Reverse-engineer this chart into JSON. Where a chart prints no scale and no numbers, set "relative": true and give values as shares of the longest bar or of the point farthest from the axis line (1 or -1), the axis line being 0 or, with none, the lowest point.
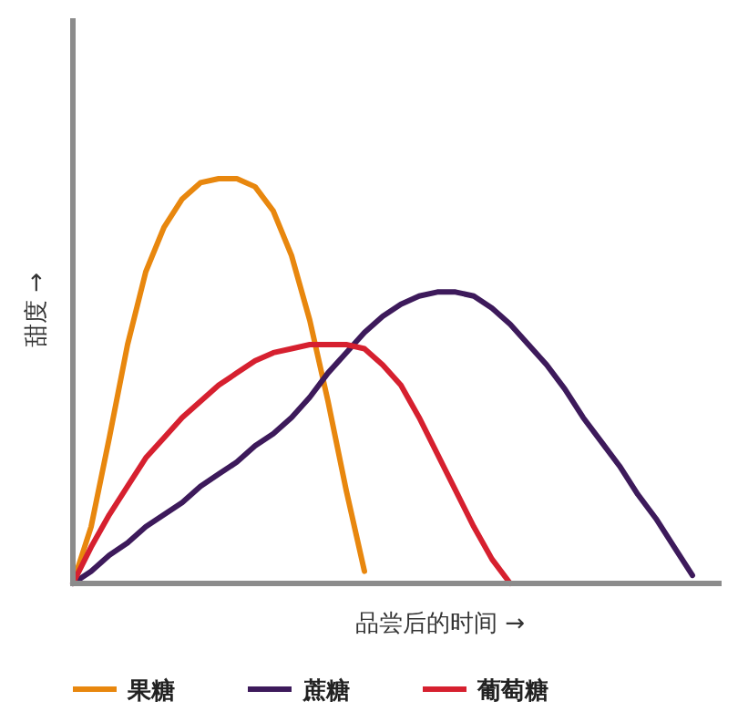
{
  "chart_data": {
    "type": "line",
    "relative": true,
    "xlabel": "品尝后的时间 →",
    "ylabel": "甜度 →",
    "legend": "bottom",
    "line_style": "solid",
    "categories": [
      null,
      null,
      null,
      null,
      null,
      null,
      null,
      null,
      null,
      null,
      null,
      null,
      null,
      null,
      null,
      null,
      null,
      null,
      null,
      null,
      null,
      null,
      null,
      null,
      null,
      null,
      null,
      null,
      null,
      null,
      null,
      null,
      null,
      null,
      null,
      null
    ],
    "series": [
      {
        "name": "果糖",
        "color": "#e8870e",
        "values": [
          0,
          0.14,
          0.36,
          0.59,
          0.77,
          0.88,
          0.95,
          0.99,
          1.0,
          1.0,
          0.98,
          0.92,
          0.81,
          0.65,
          0.45,
          0.23,
          0.03,
          null,
          null,
          null,
          null,
          null,
          null,
          null,
          null,
          null,
          null,
          null,
          null,
          null,
          null,
          null,
          null,
          null,
          null,
          null
        ]
      },
      {
        "name": "蔗糖",
        "color": "#3d1a5b",
        "values": [
          0,
          0.03,
          0.07,
          0.1,
          0.14,
          0.17,
          0.2,
          0.24,
          0.27,
          0.3,
          0.34,
          0.37,
          0.41,
          0.46,
          0.52,
          0.57,
          0.62,
          0.66,
          0.69,
          0.71,
          0.72,
          0.72,
          0.71,
          0.68,
          0.64,
          0.59,
          0.54,
          0.48,
          0.41,
          0.35,
          0.29,
          0.22,
          0.16,
          0.09,
          0.02,
          null
        ]
      },
      {
        "name": "葡萄糖",
        "color": "#d6202f",
        "values": [
          0,
          0.09,
          0.17,
          0.24,
          0.31,
          0.36,
          0.41,
          0.45,
          0.49,
          0.52,
          0.55,
          0.57,
          0.58,
          0.59,
          0.59,
          0.59,
          0.58,
          0.54,
          0.49,
          0.41,
          0.32,
          0.23,
          0.14,
          0.06,
          0,
          null,
          null,
          null,
          null,
          null,
          null,
          null,
          null,
          null,
          null,
          null
        ]
      }
    ]
  }
}
